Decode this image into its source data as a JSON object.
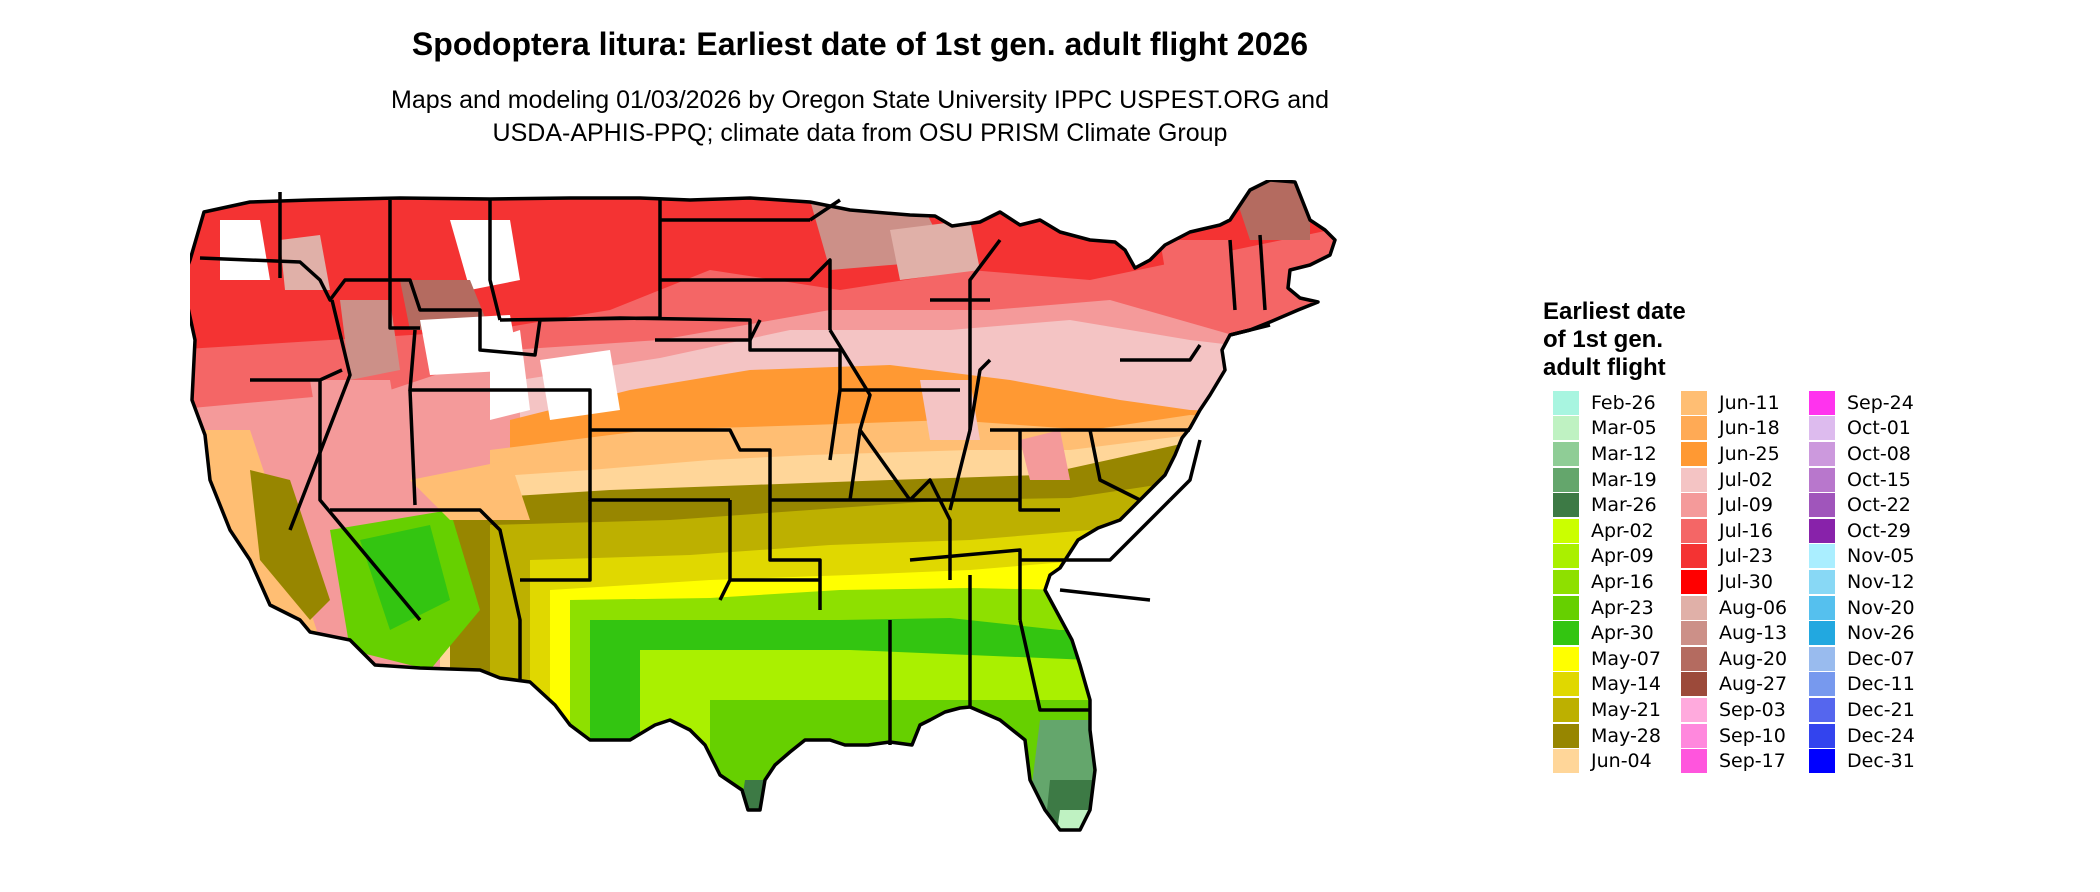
{
  "title": "Spodoptera litura: Earliest date of 1st gen. adult flight 2026",
  "subtitle_line1": "Maps and modeling 01/03/2026 by Oregon State University IPPC USPEST.ORG and",
  "subtitle_line2": "USDA-APHIS-PPQ; climate data from OSU PRISM Climate Group",
  "legend": {
    "title_lines": [
      "Earliest date",
      "of 1st gen.",
      "adult flight"
    ],
    "columns": [
      [
        {
          "label": "Feb-26",
          "color": "#a8f5e0"
        },
        {
          "label": "Mar-05",
          "color": "#bff2c2"
        },
        {
          "label": "Mar-12",
          "color": "#8fcd96"
        },
        {
          "label": "Mar-19",
          "color": "#64a66c"
        },
        {
          "label": "Mar-26",
          "color": "#3d7a45"
        },
        {
          "label": "Apr-02",
          "color": "#cbff00"
        },
        {
          "label": "Apr-09",
          "color": "#aaf000"
        },
        {
          "label": "Apr-16",
          "color": "#8ee000"
        },
        {
          "label": "Apr-23",
          "color": "#66d000"
        },
        {
          "label": "Apr-30",
          "color": "#33c511"
        },
        {
          "label": "May-07",
          "color": "#ffff00"
        },
        {
          "label": "May-14",
          "color": "#e0d800"
        },
        {
          "label": "May-21",
          "color": "#bdb000"
        },
        {
          "label": "May-28",
          "color": "#978600"
        },
        {
          "label": "Jun-04",
          "color": "#ffd699"
        }
      ],
      [
        {
          "label": "Jun-11",
          "color": "#ffbe73"
        },
        {
          "label": "Jun-18",
          "color": "#ffaa55"
        },
        {
          "label": "Jun-25",
          "color": "#ff9933"
        },
        {
          "label": "Jul-02",
          "color": "#f4c4c4"
        },
        {
          "label": "Jul-09",
          "color": "#f49a9a"
        },
        {
          "label": "Jul-16",
          "color": "#f46666"
        },
        {
          "label": "Jul-23",
          "color": "#f43333"
        },
        {
          "label": "Jul-30",
          "color": "#ff0000"
        },
        {
          "label": "Aug-06",
          "color": "#e0b0a8"
        },
        {
          "label": "Aug-13",
          "color": "#cc9088"
        },
        {
          "label": "Aug-20",
          "color": "#b46b60"
        },
        {
          "label": "Aug-27",
          "color": "#9c4a3a"
        },
        {
          "label": "Sep-03",
          "color": "#ffaadd"
        },
        {
          "label": "Sep-10",
          "color": "#ff88dd"
        },
        {
          "label": "Sep-17",
          "color": "#ff55dd"
        }
      ],
      [
        {
          "label": "Sep-24",
          "color": "#ff33ee"
        },
        {
          "label": "Oct-01",
          "color": "#ddbbee"
        },
        {
          "label": "Oct-08",
          "color": "#cc99dd"
        },
        {
          "label": "Oct-15",
          "color": "#b877cc"
        },
        {
          "label": "Oct-22",
          "color": "#a055bb"
        },
        {
          "label": "Oct-29",
          "color": "#8822aa"
        },
        {
          "label": "Nov-05",
          "color": "#aaeeff"
        },
        {
          "label": "Nov-12",
          "color": "#88d8f5"
        },
        {
          "label": "Nov-20",
          "color": "#55c0ee"
        },
        {
          "label": "Nov-26",
          "color": "#22a8e0"
        },
        {
          "label": "Dec-07",
          "color": "#99bbee"
        },
        {
          "label": "Dec-11",
          "color": "#7799ee"
        },
        {
          "label": "Dec-21",
          "color": "#5566ee"
        },
        {
          "label": "Dec-24",
          "color": "#3344ee"
        },
        {
          "label": "Dec-31",
          "color": "#0000ff"
        }
      ]
    ]
  }
}
